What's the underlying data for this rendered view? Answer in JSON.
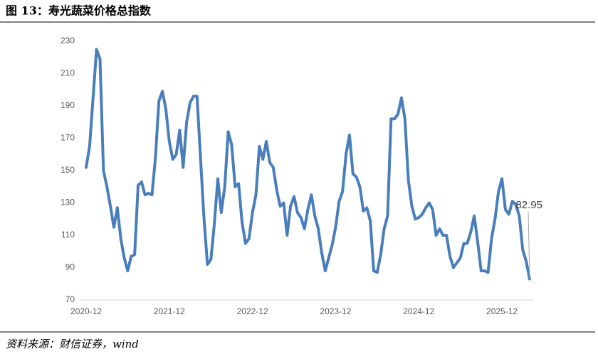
{
  "chart_data": {
    "type": "line",
    "title": "图 13：寿光蔬菜价格总指数",
    "source": "资料来源：财信证券，wind",
    "color": "#4a7ebb",
    "ylim": [
      70,
      230
    ],
    "yticks": [
      70,
      90,
      110,
      130,
      150,
      170,
      190,
      210,
      230
    ],
    "grid": false,
    "categories": [
      "2020-12",
      null,
      null,
      null,
      null,
      null,
      null,
      null,
      null,
      null,
      null,
      null,
      null,
      null,
      null,
      null,
      null,
      null,
      null,
      null,
      null,
      null,
      null,
      null,
      "2021-12",
      null,
      null,
      null,
      null,
      null,
      null,
      null,
      null,
      null,
      null,
      null,
      null,
      null,
      null,
      null,
      null,
      null,
      null,
      null,
      null,
      null,
      null,
      null,
      "2022-12",
      null,
      null,
      null,
      null,
      null,
      null,
      null,
      null,
      null,
      null,
      null,
      null,
      null,
      null,
      null,
      null,
      null,
      null,
      null,
      null,
      null,
      null,
      null,
      "2023-12",
      null,
      null,
      null,
      null,
      null,
      null,
      null,
      null,
      null,
      null,
      null,
      null,
      null,
      null,
      null,
      null,
      null,
      null,
      null,
      null,
      null,
      null,
      null,
      "2024-12",
      null,
      null,
      null,
      null,
      null,
      null,
      null,
      null,
      null,
      null,
      null,
      null,
      null,
      null,
      null,
      null,
      null,
      null,
      null,
      null,
      null,
      null,
      null,
      "2025-12",
      null,
      null,
      null,
      null,
      null,
      null,
      null,
      null
    ],
    "values": [
      152,
      165,
      195,
      225,
      219,
      150,
      140,
      128,
      115,
      127,
      108,
      96,
      88,
      97,
      98,
      141,
      143,
      135,
      136,
      135,
      158,
      193,
      199,
      188,
      168,
      157,
      160,
      175,
      152,
      180,
      192,
      196,
      196,
      158,
      121,
      92,
      95,
      117,
      145,
      124,
      140,
      174,
      166,
      140,
      142,
      118,
      105,
      108,
      124,
      135,
      165,
      157,
      168,
      155,
      152,
      138,
      128,
      130,
      110,
      128,
      134,
      124,
      121,
      114,
      126,
      135,
      122,
      114,
      99,
      88,
      96,
      104,
      115,
      131,
      137,
      160,
      172,
      148,
      146,
      140,
      125,
      127,
      119,
      88,
      87,
      98,
      114,
      122,
      182,
      182,
      185,
      195,
      182,
      144,
      128,
      120,
      121,
      123,
      127,
      130,
      126,
      110,
      114,
      110,
      110,
      97,
      90,
      93,
      96,
      105,
      105,
      112,
      122,
      106,
      88,
      88,
      87,
      108,
      120,
      137,
      145,
      126,
      123,
      131,
      129,
      122,
      101,
      94,
      82.95
    ],
    "label_last": true
  }
}
